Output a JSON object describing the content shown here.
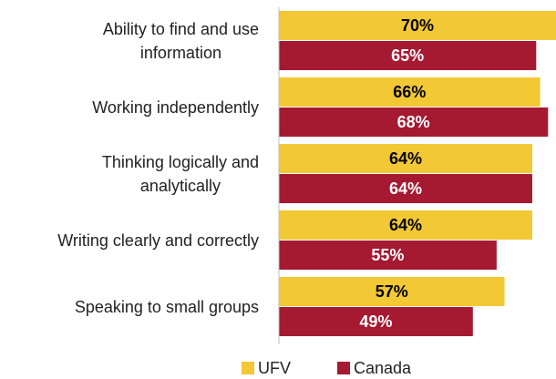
{
  "chart_data": {
    "type": "bar",
    "orientation": "horizontal",
    "categories": [
      "Ability to find and use\ninformation",
      "Working independently",
      "Thinking logically and\nanalytically",
      "Writing clearly and correctly",
      "Speaking to small groups"
    ],
    "series": [
      {
        "name": "UFV",
        "color": "#f2c834",
        "values": [
          70,
          66,
          64,
          64,
          57
        ],
        "value_labels": [
          "70%",
          "66%",
          "64%",
          "64%",
          "57%"
        ]
      },
      {
        "name": "Canada",
        "color": "#a51931",
        "values": [
          65,
          68,
          64,
          55,
          49
        ],
        "value_labels": [
          "65%",
          "68%",
          "64%",
          "55%",
          "49%"
        ]
      }
    ],
    "xlim": [
      0,
      70
    ],
    "legend": "bottom"
  }
}
